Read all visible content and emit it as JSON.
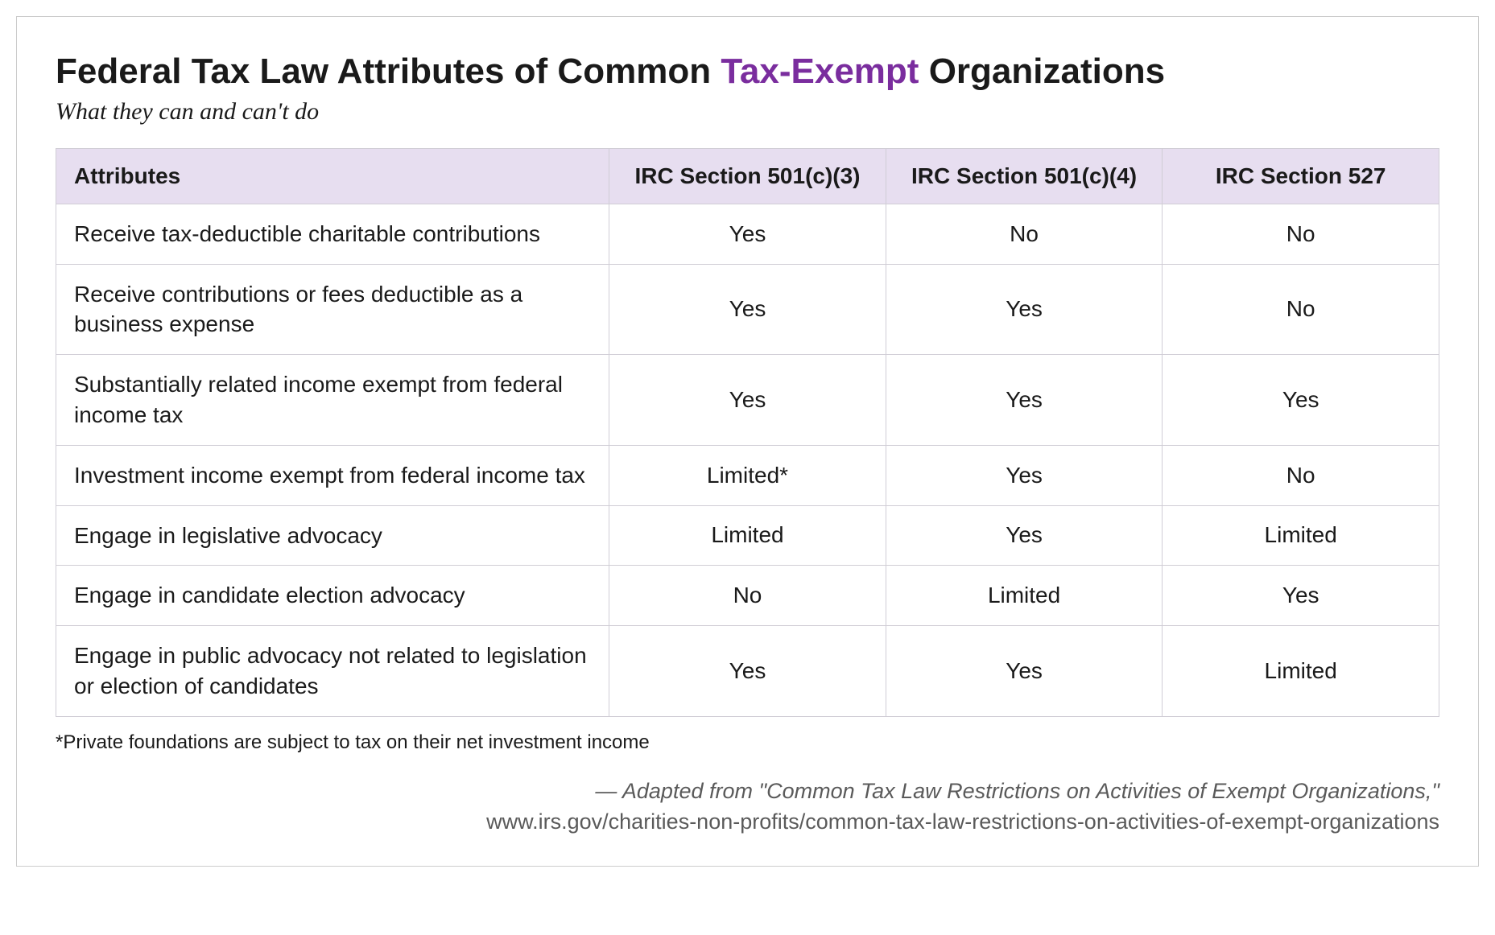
{
  "title": {
    "prefix": "Federal Tax Law Attributes of Common ",
    "accent": "Tax-Exempt",
    "suffix": " Organizations"
  },
  "subtitle": "What they can and can't do",
  "table": {
    "header_attr": "Attributes",
    "columns": [
      "IRC Section 501(c)(3)",
      "IRC Section 501(c)(4)",
      "IRC Section 527"
    ],
    "rows": [
      {
        "attr": "Receive tax-deductible charitable contributions",
        "vals": [
          "Yes",
          "No",
          "No"
        ]
      },
      {
        "attr": "Receive contributions or fees deductible as a business expense",
        "vals": [
          "Yes",
          "Yes",
          "No"
        ]
      },
      {
        "attr": "Substantially related income exempt from federal income tax",
        "vals": [
          "Yes",
          "Yes",
          "Yes"
        ]
      },
      {
        "attr": "Investment income exempt from federal income tax",
        "vals": [
          "Limited*",
          "Yes",
          "No"
        ]
      },
      {
        "attr": "Engage in legislative advocacy",
        "vals": [
          "Limited",
          "Yes",
          "Limited"
        ]
      },
      {
        "attr": "Engage in candidate election advocacy",
        "vals": [
          "No",
          "Limited",
          "Yes"
        ]
      },
      {
        "attr": "Engage in public advocacy not related to legislation or election of candidates",
        "vals": [
          "Yes",
          "Yes",
          "Limited"
        ]
      }
    ]
  },
  "footnote": "*Private foundations are subject to tax on their net investment income",
  "source": {
    "line1": "— Adapted from \"Common Tax Law Restrictions on Activities of Exempt Organizations,\"",
    "line2": "www.irs.gov/charities-non-profits/common-tax-law-restrictions-on-activities-of-exempt-organizations"
  },
  "style": {
    "border_color": "#d0cdd5",
    "header_bg": "#e7def0",
    "accent_color": "#7a2d9e",
    "text_color": "#1a1a1a",
    "source_color": "#5a5a5a",
    "title_fontsize": 44,
    "subtitle_fontsize": 30,
    "cell_fontsize": 28,
    "footnote_fontsize": 24,
    "source_fontsize": 27
  }
}
